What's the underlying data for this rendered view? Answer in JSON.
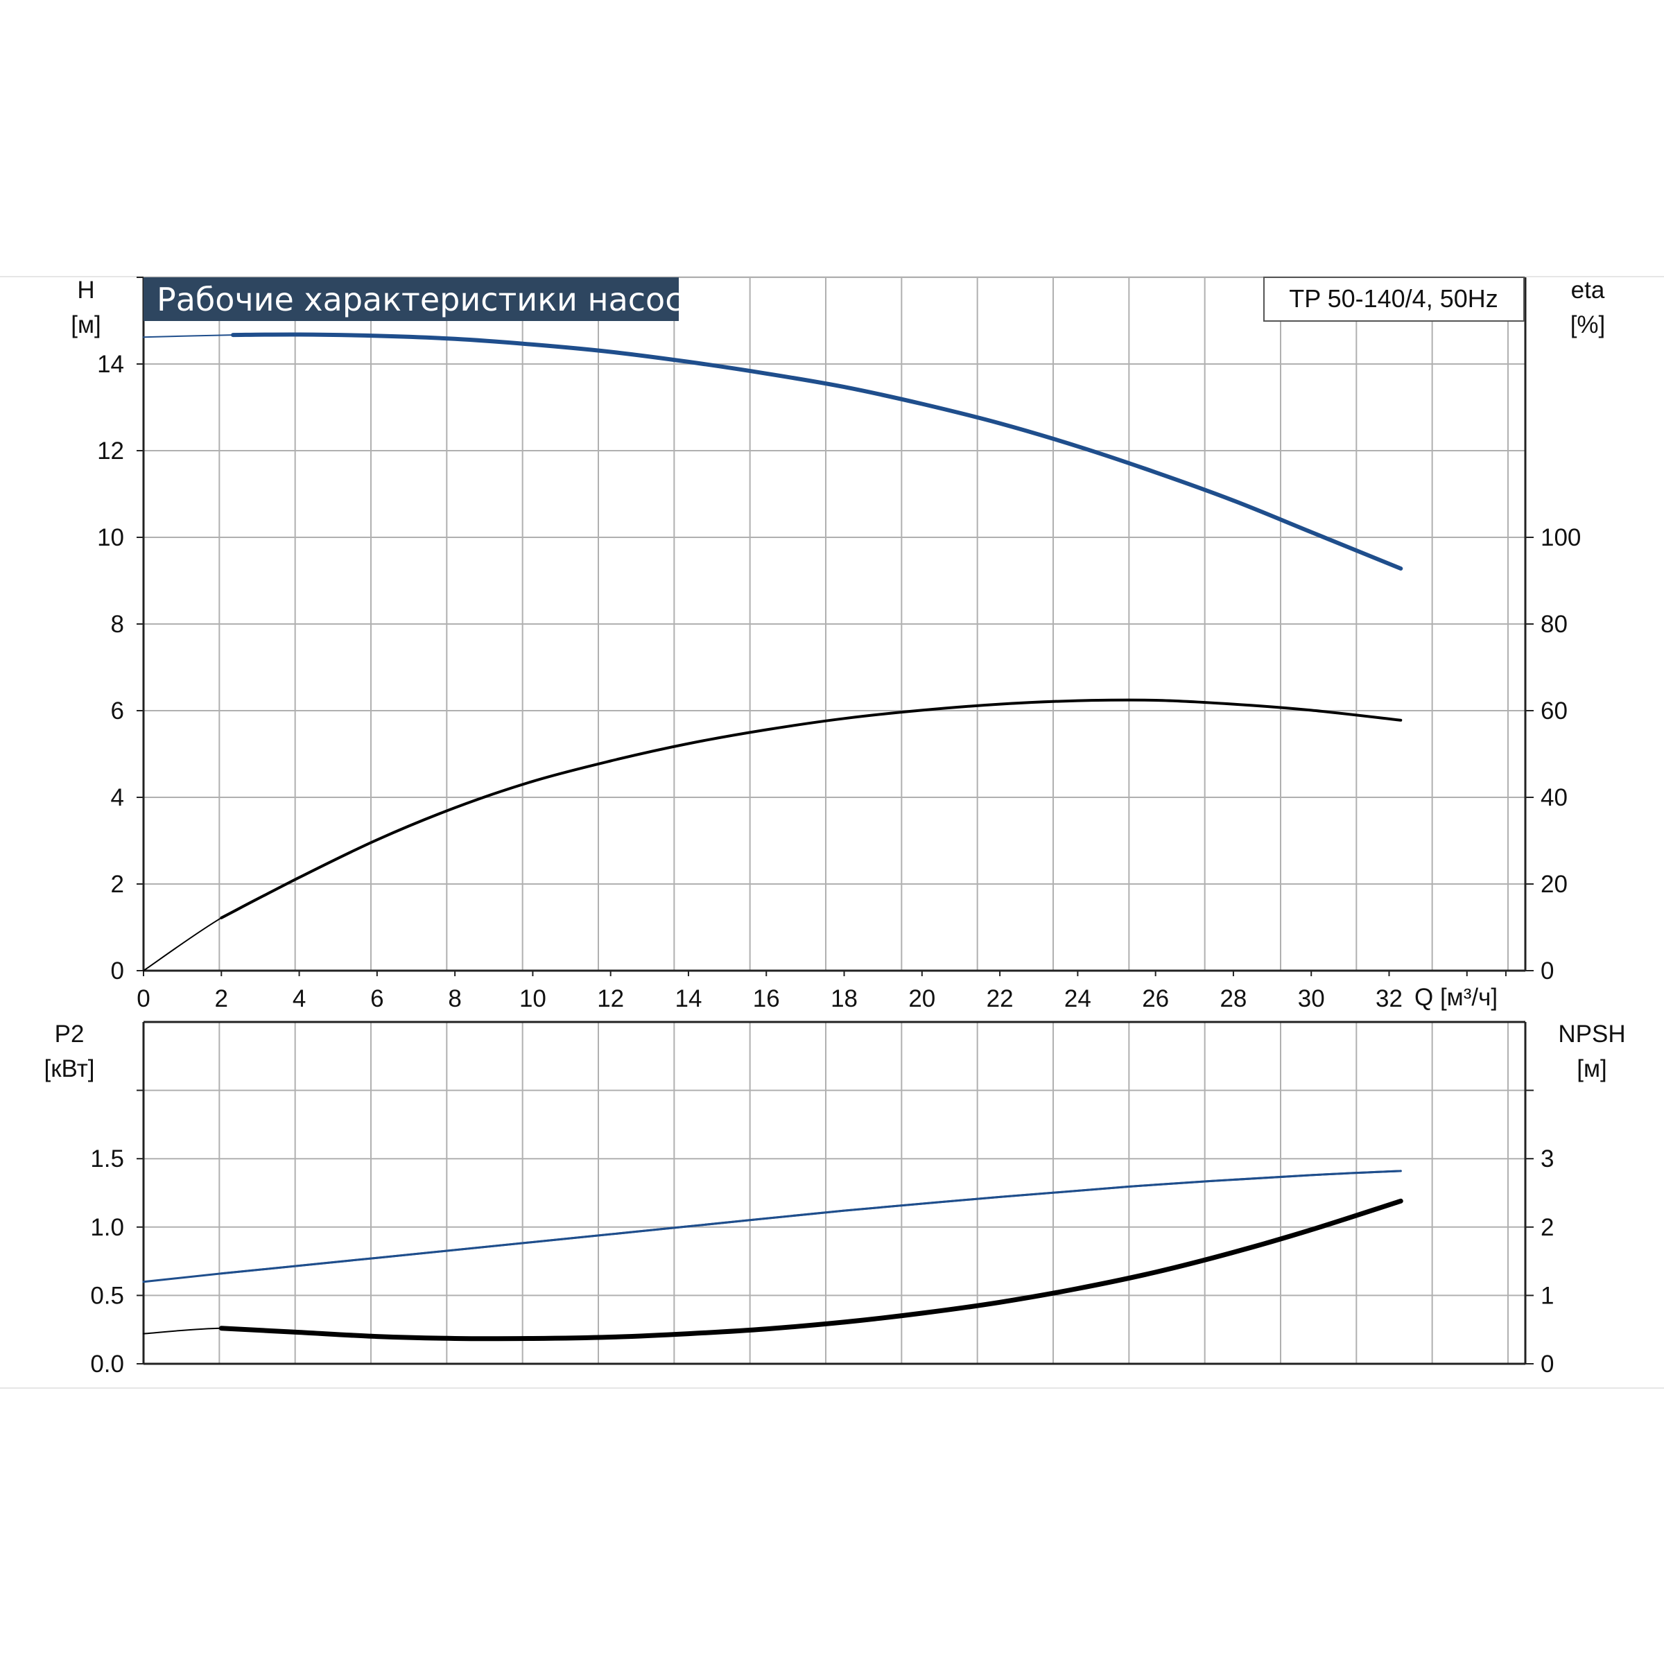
{
  "chart_data": [
    {
      "panel": "top",
      "type": "line",
      "title": "Рабочие характеристики насоса",
      "model": "TP 50-140/4, 50Hz",
      "xlabel": "Q [м³/ч]",
      "ylabel_left": [
        "H",
        "[м]"
      ],
      "ylabel_right": [
        "eta",
        "[%]"
      ],
      "xlim": [
        0,
        35.5
      ],
      "ylim_left": [
        0,
        16
      ],
      "ylim_right": [
        0,
        160
      ],
      "x_ticks": [
        0,
        2,
        4,
        6,
        8,
        10,
        12,
        14,
        16,
        18,
        20,
        22,
        24,
        26,
        28,
        30,
        32
      ],
      "y_ticks_left": [
        0,
        2,
        4,
        6,
        8,
        10,
        12,
        14
      ],
      "y_ticks_right": [
        0,
        20,
        40,
        60,
        80,
        100
      ],
      "grid": true,
      "series": [
        {
          "axis": "left",
          "color": "#1f4e8c",
          "points": [
            [
              0,
              14.62
            ],
            [
              2.3,
              14.67
            ],
            [
              4,
              14.68
            ],
            [
              6,
              14.65
            ],
            [
              8,
              14.58
            ],
            [
              10,
              14.45
            ],
            [
              12,
              14.28
            ],
            [
              14,
              14.05
            ],
            [
              16,
              13.78
            ],
            [
              18,
              13.47
            ],
            [
              20,
              13.08
            ],
            [
              22,
              12.63
            ],
            [
              24,
              12.1
            ],
            [
              26,
              11.5
            ],
            [
              28,
              10.85
            ],
            [
              30,
              10.12
            ],
            [
              32.3,
              9.28
            ]
          ]
        },
        {
          "axis": "right",
          "color": "#000000",
          "points": [
            [
              0,
              0
            ],
            [
              2,
              12.2
            ],
            [
              4,
              21.5
            ],
            [
              6,
              30.2
            ],
            [
              8,
              37.6
            ],
            [
              10,
              43.7
            ],
            [
              12,
              48.4
            ],
            [
              14,
              52.4
            ],
            [
              16,
              55.6
            ],
            [
              18,
              58.2
            ],
            [
              20,
              60.1
            ],
            [
              22,
              61.5
            ],
            [
              24,
              62.3
            ],
            [
              26,
              62.4
            ],
            [
              28,
              61.5
            ],
            [
              30,
              60.1
            ],
            [
              32.3,
              57.8
            ]
          ]
        }
      ]
    },
    {
      "panel": "bottom",
      "type": "line",
      "xlim": [
        0,
        35.5
      ],
      "ylabel_left": [
        "P2",
        "[кВт]"
      ],
      "ylabel_right": [
        "NPSH",
        "[м]"
      ],
      "ylim_left": [
        0,
        2.5
      ],
      "ylim_right": [
        0,
        5
      ],
      "y_ticks_left": [
        "0.0",
        "0.5",
        "1.0",
        "1.5"
      ],
      "y_ticks_right": [
        0,
        1,
        2,
        3
      ],
      "grid": true,
      "series": [
        {
          "axis": "left",
          "color": "#1f4e8c",
          "points": [
            [
              0,
              0.6
            ],
            [
              2,
              0.66
            ],
            [
              6,
              0.775
            ],
            [
              10,
              0.89
            ],
            [
              14,
              1.005
            ],
            [
              18,
              1.12
            ],
            [
              22,
              1.22
            ],
            [
              26,
              1.31
            ],
            [
              30,
              1.38
            ],
            [
              32.3,
              1.41
            ]
          ]
        },
        {
          "axis": "right",
          "color": "#000000",
          "points": [
            [
              0,
              0.44
            ],
            [
              2,
              0.52
            ],
            [
              4,
              0.46
            ],
            [
              6,
              0.4
            ],
            [
              8,
              0.37
            ],
            [
              10,
              0.37
            ],
            [
              12,
              0.39
            ],
            [
              14,
              0.44
            ],
            [
              16,
              0.51
            ],
            [
              18,
              0.61
            ],
            [
              20,
              0.74
            ],
            [
              22,
              0.9
            ],
            [
              24,
              1.1
            ],
            [
              26,
              1.34
            ],
            [
              28,
              1.63
            ],
            [
              30,
              1.96
            ],
            [
              32.3,
              2.38
            ]
          ]
        }
      ]
    }
  ]
}
